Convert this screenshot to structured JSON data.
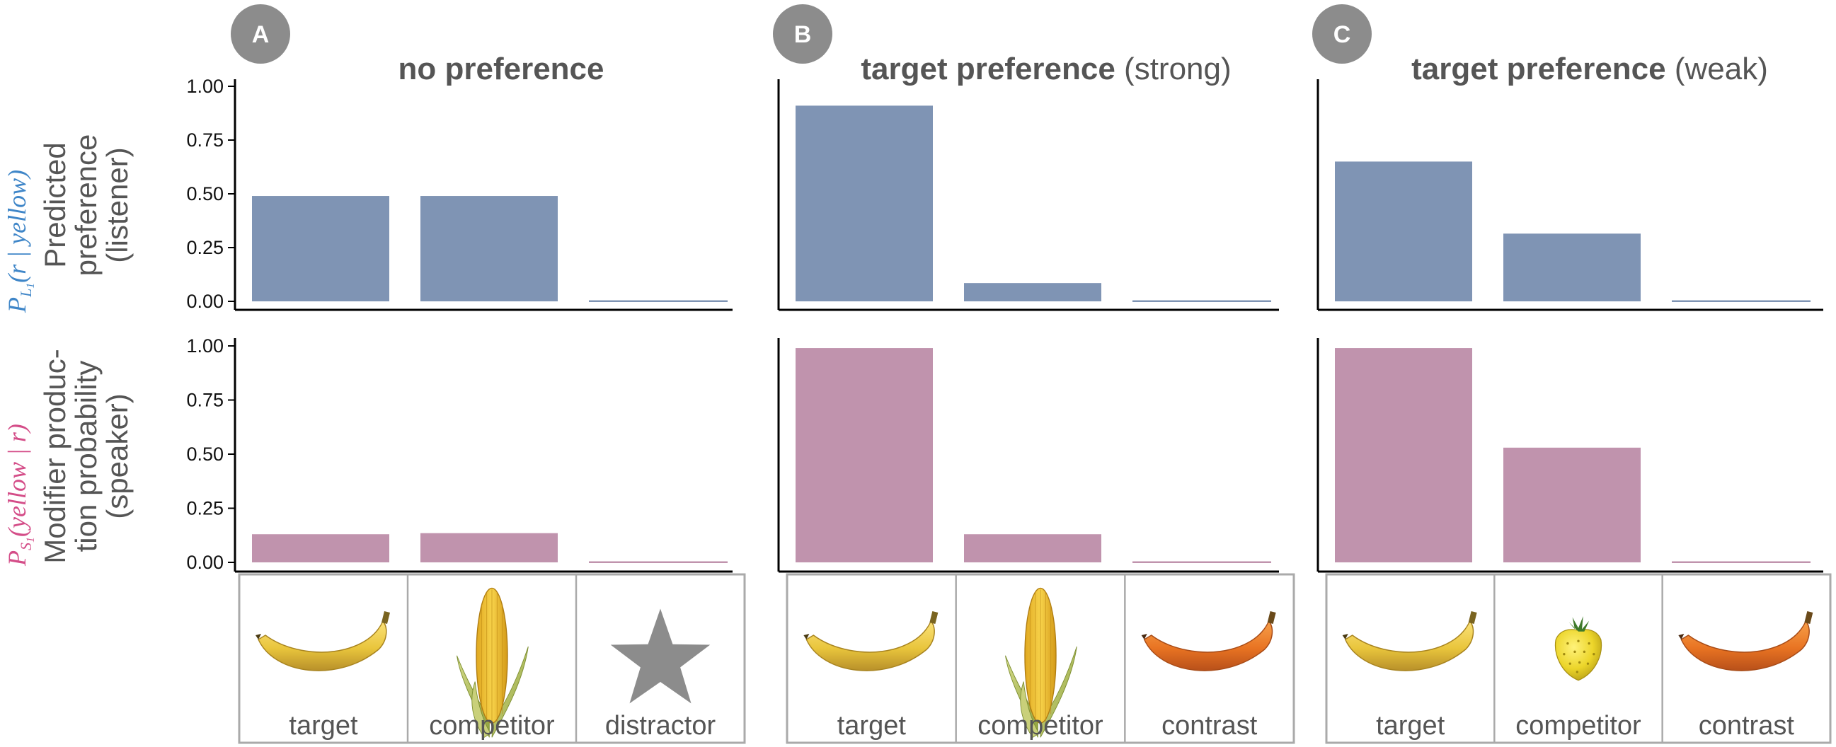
{
  "colors": {
    "listener_bar": "#7f94b4",
    "speaker_bar": "#c093ad",
    "listener_label": "#3f86c8",
    "speaker_label": "#d44d88",
    "badge": "#8c8c8c",
    "text_gray": "#555555",
    "frame_gray": "#aaaaaa"
  },
  "y_labels": {
    "listener": {
      "line1": "Predicted",
      "line2": "preference",
      "line3": "(listener)",
      "math_main": "P",
      "math_sub": "L",
      "math_subsub": "1",
      "math_arg": "(r | yellow)"
    },
    "speaker": {
      "line1": "Modifier produc-",
      "line2": "tion probability",
      "line3": "(speaker)",
      "math_main": "P",
      "math_sub": "S",
      "math_subsub": "1",
      "math_arg": "(yellow | r)"
    }
  },
  "chart_data": [
    {
      "type": "bar",
      "panel": "A",
      "title_bold": "no preference",
      "title_rest": "",
      "categories": [
        "target",
        "competitor",
        "distractor"
      ],
      "images": [
        "banana-icon",
        "corn-icon",
        "star-icon"
      ],
      "series": [
        {
          "role": "listener",
          "values": [
            0.49,
            0.49,
            0.0
          ]
        },
        {
          "role": "speaker",
          "values": [
            0.13,
            0.135,
            0.0
          ]
        }
      ],
      "ylim": [
        0,
        1.0
      ],
      "yticks": [
        "0.00",
        "0.25",
        "0.50",
        "0.75",
        "1.00"
      ],
      "show_yticks": true
    },
    {
      "type": "bar",
      "panel": "B",
      "title_bold": "target preference",
      "title_rest": " (strong)",
      "categories": [
        "target",
        "competitor",
        "contrast"
      ],
      "images": [
        "banana-icon",
        "corn-icon",
        "orange-banana-icon"
      ],
      "series": [
        {
          "role": "listener",
          "values": [
            0.91,
            0.085,
            0.0
          ]
        },
        {
          "role": "speaker",
          "values": [
            0.99,
            0.13,
            0.0
          ]
        }
      ],
      "ylim": [
        0,
        1.0
      ],
      "show_yticks": false
    },
    {
      "type": "bar",
      "panel": "C",
      "title_bold": "target preference",
      "title_rest": " (weak)",
      "categories": [
        "target",
        "competitor",
        "contrast"
      ],
      "images": [
        "banana-icon",
        "strawberry-icon",
        "orange-banana-icon"
      ],
      "series": [
        {
          "role": "listener",
          "values": [
            0.65,
            0.315,
            0.0
          ]
        },
        {
          "role": "speaker",
          "values": [
            0.99,
            0.53,
            0.0
          ]
        }
      ],
      "ylim": [
        0,
        1.0
      ],
      "show_yticks": false
    }
  ]
}
